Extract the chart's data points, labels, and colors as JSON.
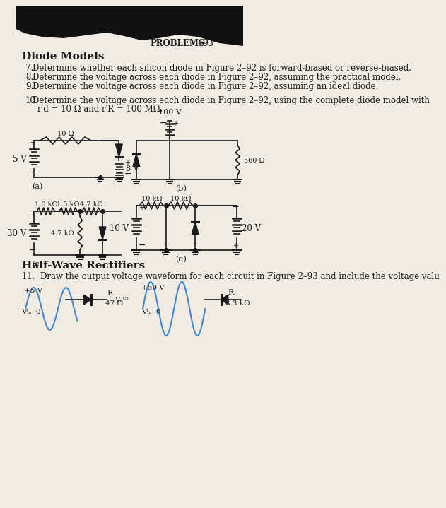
{
  "bg_color": "#f0ece4",
  "text_color": "#1a1a1a",
  "header_text": "PROBLEMS",
  "header_bullet": "♦",
  "header_number": "93",
  "section_title": "Diode Models",
  "problems": [
    {
      "num": "7.",
      "text": "Determine whether each silicon diode in Figure 2–92 is forward-biased or reverse-biased."
    },
    {
      "num": "8.",
      "text": "Determine the voltage across each diode in Figure 2–92, assuming the practical model."
    },
    {
      "num": "9.",
      "text": "Determine the voltage across each diode in Figure 2–92, assuming an ideal diode."
    },
    {
      "num": "10.",
      "text": "Determine the voltage across each diode in Figure 2–92, using the complete diode model with"
    }
  ],
  "problem10_cont": "r′d = 10 Ω and r′R = 100 MΩ.",
  "fig_labels": [
    "(a)",
    "(b)",
    "(c)",
    "(d)"
  ],
  "half_wave_title": "Half-Wave Rectifiers",
  "problem11": "11.  Draw the output voltage waveform for each circuit in Figure 2–93 and include the voltage valu",
  "wave_color": "#4488cc",
  "circuit_color": "#1a1a1a"
}
